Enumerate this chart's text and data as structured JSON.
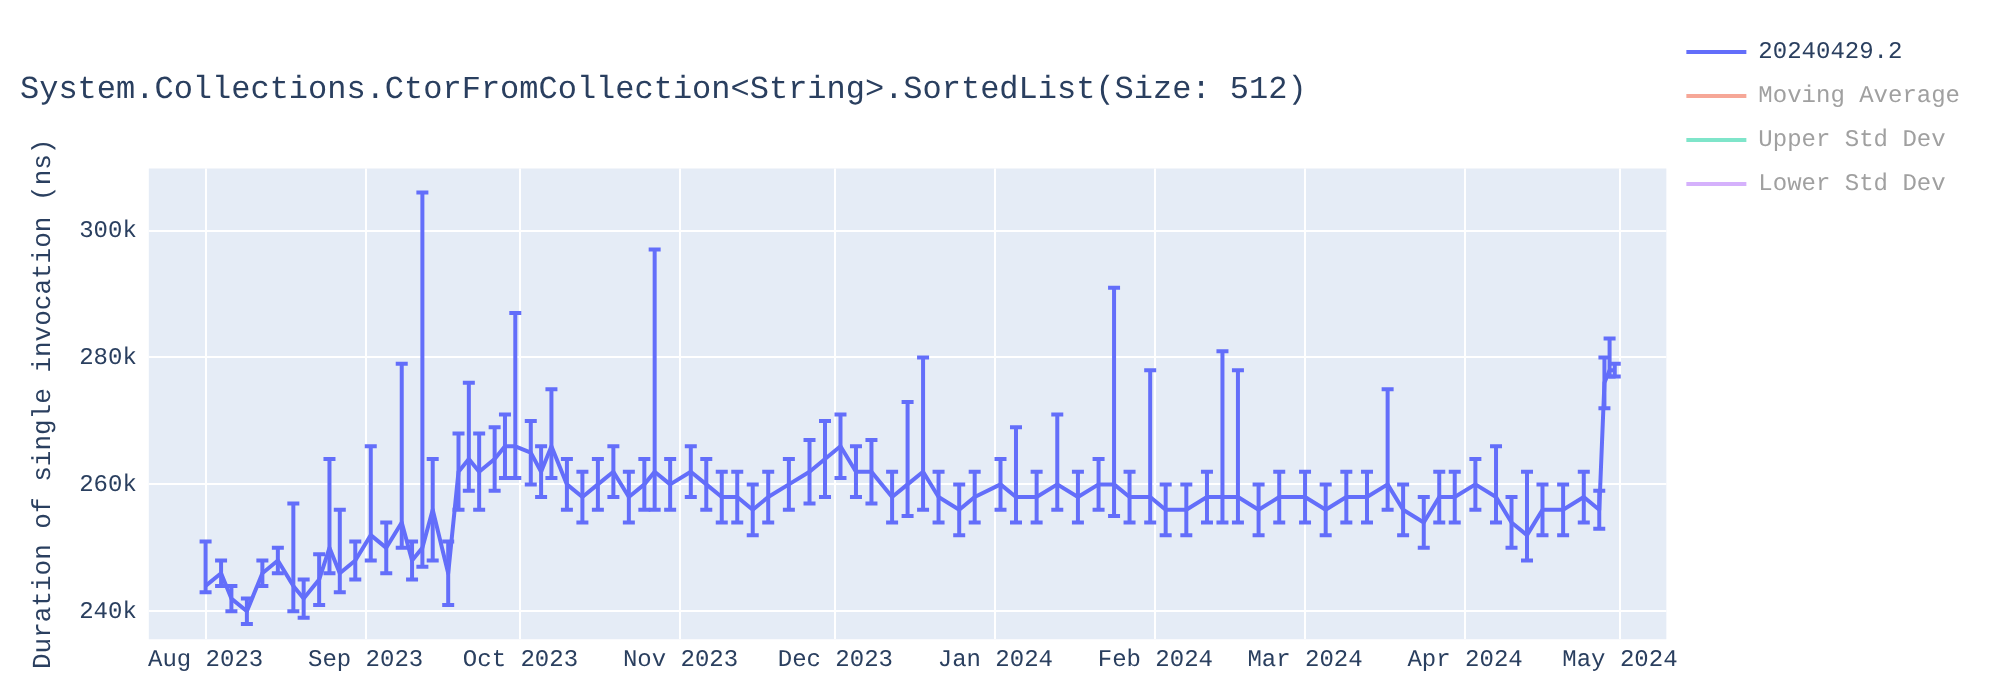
{
  "chart_data": {
    "type": "line",
    "title": "System.Collections.CtorFromCollection<String>.SortedList(Size: 512)",
    "ylabel": "Duration of single invocation (ns)",
    "xlim": [
      "2023-07-21",
      "2024-05-10"
    ],
    "ylim": [
      235600,
      309800
    ],
    "xticks": [
      {
        "value": "2023-08-01",
        "label": "Aug 2023"
      },
      {
        "value": "2023-09-01",
        "label": "Sep 2023"
      },
      {
        "value": "2023-10-01",
        "label": "Oct 2023"
      },
      {
        "value": "2023-11-01",
        "label": "Nov 2023"
      },
      {
        "value": "2023-12-01",
        "label": "Dec 2023"
      },
      {
        "value": "2024-01-01",
        "label": "Jan 2024"
      },
      {
        "value": "2024-02-01",
        "label": "Feb 2024"
      },
      {
        "value": "2024-03-01",
        "label": "Mar 2024"
      },
      {
        "value": "2024-04-01",
        "label": "Apr 2024"
      },
      {
        "value": "2024-05-01",
        "label": "May 2024"
      }
    ],
    "yticks": [
      {
        "value": 240000,
        "label": "240k"
      },
      {
        "value": 260000,
        "label": "260k"
      },
      {
        "value": 280000,
        "label": "280k"
      },
      {
        "value": 300000,
        "label": "300k"
      }
    ],
    "grid": true,
    "legend": "right",
    "marker": "none",
    "line_style": "solid",
    "x": [
      "2023-08-01",
      "2023-08-04",
      "2023-08-06",
      "2023-08-09",
      "2023-08-12",
      "2023-08-15",
      "2023-08-18",
      "2023-08-20",
      "2023-08-23",
      "2023-08-25",
      "2023-08-27",
      "2023-08-30",
      "2023-09-02",
      "2023-09-05",
      "2023-09-08",
      "2023-09-10",
      "2023-09-12",
      "2023-09-14",
      "2023-09-17",
      "2023-09-19",
      "2023-09-21",
      "2023-09-23",
      "2023-09-26",
      "2023-09-28",
      "2023-09-30",
      "2023-10-03",
      "2023-10-05",
      "2023-10-07",
      "2023-10-10",
      "2023-10-13",
      "2023-10-16",
      "2023-10-19",
      "2023-10-22",
      "2023-10-25",
      "2023-10-27",
      "2023-10-30",
      "2023-11-03",
      "2023-11-06",
      "2023-11-09",
      "2023-11-12",
      "2023-11-15",
      "2023-11-18",
      "2023-11-22",
      "2023-11-26",
      "2023-11-29",
      "2023-12-02",
      "2023-12-05",
      "2023-12-08",
      "2023-12-12",
      "2023-12-15",
      "2023-12-18",
      "2023-12-21",
      "2023-12-25",
      "2023-12-28",
      "2024-01-02",
      "2024-01-05",
      "2024-01-09",
      "2024-01-13",
      "2024-01-17",
      "2024-01-21",
      "2024-01-24",
      "2024-01-27",
      "2024-01-31",
      "2024-02-03",
      "2024-02-07",
      "2024-02-11",
      "2024-02-14",
      "2024-02-17",
      "2024-02-21",
      "2024-02-25",
      "2024-03-01",
      "2024-03-05",
      "2024-03-09",
      "2024-03-13",
      "2024-03-17",
      "2024-03-20",
      "2024-03-24",
      "2024-03-27",
      "2024-03-30",
      "2024-04-03",
      "2024-04-07",
      "2024-04-10",
      "2024-04-13",
      "2024-04-16",
      "2024-04-20",
      "2024-04-24",
      "2024-04-27",
      "2024-04-28",
      "2024-04-29",
      "2024-04-30"
    ],
    "series": [
      {
        "name": "20240429.2",
        "color": "#636efa",
        "values": [
          244000,
          246000,
          242000,
          240000,
          246000,
          248000,
          244000,
          242000,
          245000,
          250000,
          246000,
          248000,
          252000,
          250000,
          254000,
          248000,
          250000,
          256000,
          246000,
          262000,
          264000,
          262000,
          264000,
          266000,
          266000,
          265000,
          262000,
          266000,
          260000,
          258000,
          260000,
          262000,
          258000,
          260000,
          262000,
          260000,
          262000,
          260000,
          258000,
          258000,
          256000,
          258000,
          260000,
          262000,
          264000,
          266000,
          262000,
          262000,
          258000,
          260000,
          262000,
          258000,
          256000,
          258000,
          260000,
          258000,
          258000,
          260000,
          258000,
          260000,
          260000,
          258000,
          258000,
          256000,
          256000,
          258000,
          258000,
          258000,
          256000,
          258000,
          258000,
          256000,
          258000,
          258000,
          260000,
          256000,
          254000,
          258000,
          258000,
          260000,
          258000,
          254000,
          252000,
          256000,
          256000,
          258000,
          256000,
          276000,
          278000,
          278000
        ],
        "errors": [
          [
            243000,
            251000
          ],
          2000,
          2000,
          2000,
          2000,
          2000,
          [
            240000,
            257000
          ],
          3000,
          4000,
          [
            246000,
            264000
          ],
          [
            243000,
            256000
          ],
          3000,
          [
            248000,
            266000
          ],
          4000,
          [
            250000,
            279000
          ],
          3000,
          [
            247000,
            306000
          ],
          8000,
          5000,
          6000,
          [
            259000,
            276000
          ],
          6000,
          5000,
          5000,
          [
            261000,
            287000
          ],
          5000,
          4000,
          [
            261000,
            275000
          ],
          4000,
          4000,
          4000,
          4000,
          4000,
          4000,
          [
            256000,
            297000
          ],
          4000,
          4000,
          4000,
          4000,
          4000,
          4000,
          4000,
          4000,
          5000,
          6000,
          5000,
          4000,
          5000,
          4000,
          [
            255000,
            273000
          ],
          [
            256000,
            280000
          ],
          4000,
          4000,
          4000,
          4000,
          [
            254000,
            269000
          ],
          4000,
          [
            256000,
            271000
          ],
          4000,
          4000,
          [
            255000,
            291000
          ],
          4000,
          [
            254000,
            278000
          ],
          4000,
          4000,
          4000,
          [
            254000,
            281000
          ],
          [
            254000,
            278000
          ],
          4000,
          4000,
          4000,
          4000,
          4000,
          4000,
          [
            256000,
            275000
          ],
          4000,
          4000,
          4000,
          4000,
          4000,
          [
            254000,
            266000
          ],
          4000,
          [
            248000,
            262000
          ],
          4000,
          4000,
          4000,
          3000,
          4000,
          [
            277000,
            283000
          ],
          1000
        ]
      },
      {
        "name": "Moving Average",
        "color": "#f6a797",
        "values": [
          null,
          null,
          null,
          null,
          null,
          null,
          null,
          null,
          null,
          null,
          null,
          null,
          null,
          null,
          null,
          null,
          null,
          null,
          null,
          null,
          null,
          null,
          null,
          null,
          null,
          null,
          null,
          null,
          null,
          null,
          null,
          null,
          null,
          null,
          null,
          null,
          null,
          null,
          null,
          null,
          null,
          null,
          null,
          null,
          null,
          null,
          null,
          null,
          null,
          null,
          null,
          null,
          null,
          null,
          null,
          null,
          null,
          null,
          null,
          null,
          null,
          null,
          null,
          null,
          null,
          null,
          null,
          null,
          null,
          null,
          null,
          null,
          null,
          null,
          null,
          null,
          null,
          null,
          null,
          null,
          null,
          null,
          null,
          null,
          null,
          null,
          null,
          null,
          null,
          null
        ]
      },
      {
        "name": "Upper Std Dev",
        "color": "#7fe5ca",
        "values": [
          null,
          null,
          null,
          null,
          null,
          null,
          null,
          null,
          null,
          null,
          null,
          null,
          null,
          null,
          null,
          null,
          null,
          null,
          null,
          null,
          null,
          null,
          null,
          null,
          null,
          null,
          null,
          null,
          null,
          null,
          null,
          null,
          null,
          null,
          null,
          null,
          null,
          null,
          null,
          null,
          null,
          null,
          null,
          null,
          null,
          null,
          null,
          null,
          null,
          null,
          null,
          null,
          null,
          null,
          null,
          null,
          null,
          null,
          null,
          null,
          null,
          null,
          null,
          null,
          null,
          null,
          null,
          null,
          null,
          null,
          null,
          null,
          null,
          null,
          null,
          null,
          null,
          null,
          null,
          null,
          null,
          null,
          null,
          null,
          null,
          null,
          null,
          null,
          null,
          null
        ]
      },
      {
        "name": "Lower Std Dev",
        "color": "#d5b1fc",
        "values": [
          null,
          null,
          null,
          null,
          null,
          null,
          null,
          null,
          null,
          null,
          null,
          null,
          null,
          null,
          null,
          null,
          null,
          null,
          null,
          null,
          null,
          null,
          null,
          null,
          null,
          null,
          null,
          null,
          null,
          null,
          null,
          null,
          null,
          null,
          null,
          null,
          null,
          null,
          null,
          null,
          null,
          null,
          null,
          null,
          null,
          null,
          null,
          null,
          null,
          null,
          null,
          null,
          null,
          null,
          null,
          null,
          null,
          null,
          null,
          null,
          null,
          null,
          null,
          null,
          null,
          null,
          null,
          null,
          null,
          null,
          null,
          null,
          null,
          null,
          null,
          null,
          null,
          null,
          null,
          null,
          null,
          null,
          null,
          null,
          null,
          null,
          null,
          null,
          null,
          null
        ]
      }
    ]
  }
}
